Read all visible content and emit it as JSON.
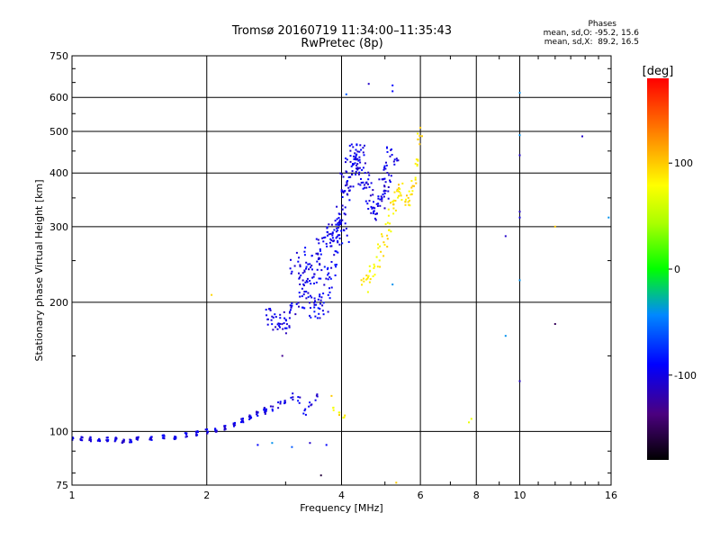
{
  "chart_data": {
    "type": "scatter",
    "title": "Tromsø 20160719 11:34:00–11:35:43",
    "subtitle": "RwPretec (8p)",
    "xlabel": "Frequency [MHz]",
    "ylabel": "Stationary phase Virtual Height [km]",
    "xscale": "log",
    "yscale": "log",
    "xlim": [
      1,
      16
    ],
    "ylim": [
      75,
      750
    ],
    "x_ticks": [
      1,
      2,
      4,
      6,
      8,
      10,
      16
    ],
    "y_ticks": [
      75,
      100,
      200,
      300,
      400,
      500,
      600,
      750
    ],
    "grid": true,
    "legend_title": "Phases",
    "stats_lines": [
      "mean, sd,O: -95.2, 15.6",
      "mean, sd,X:  89.2, 16.5"
    ],
    "colorbar": {
      "label": "[deg]",
      "ticks": [
        -100,
        0,
        100
      ],
      "range": [
        -180,
        180
      ]
    },
    "traces": [
      {
        "x": [
          1.0,
          1.05,
          1.1,
          1.15,
          1.2,
          1.25,
          1.3,
          1.35,
          1.4,
          1.5,
          1.6,
          1.7,
          1.8,
          1.9,
          2.0,
          2.1,
          2.2,
          2.3,
          2.4,
          2.5,
          2.6,
          2.7
        ],
        "y": [
          96,
          96,
          96,
          95,
          96,
          96,
          95,
          95,
          96,
          96,
          97,
          97,
          98,
          99,
          100,
          101,
          102,
          104,
          106,
          108,
          110,
          112
        ],
        "phase": -100,
        "spread": 0.012,
        "n": 8
      },
      {
        "x": [
          2.7,
          2.8,
          2.9,
          3.0,
          3.1,
          3.2,
          3.3,
          3.4,
          3.5
        ],
        "y": [
          112,
          113,
          115,
          117,
          121,
          118,
          111,
          115,
          120
        ],
        "phase": -100,
        "spread": 0.02,
        "n": 4
      },
      {
        "x": [
          2.75,
          2.85,
          2.95,
          3.05,
          3.15,
          3.3,
          3.4,
          3.5,
          3.6,
          3.7,
          3.8,
          3.9,
          4.0,
          4.1,
          4.2,
          4.3,
          4.4
        ],
        "y": [
          185,
          180,
          178,
          182,
          195,
          215,
          235,
          250,
          270,
          280,
          290,
          300,
          320,
          350,
          380,
          420,
          450
        ],
        "phase": -100,
        "spread": 0.05,
        "n": 10
      },
      {
        "x": [
          3.2,
          3.3,
          3.4,
          3.5,
          3.6,
          3.7,
          3.8,
          3.9,
          4.0
        ],
        "y": [
          250,
          230,
          210,
          195,
          200,
          220,
          250,
          280,
          300
        ],
        "phase": -95,
        "spread": 0.08,
        "n": 14
      },
      {
        "x": [
          4.1,
          4.2,
          4.3,
          4.4,
          4.5,
          4.6,
          4.7,
          4.8,
          4.9,
          5.0,
          5.1,
          5.2
        ],
        "y": [
          380,
          420,
          440,
          430,
          380,
          360,
          340,
          330,
          350,
          370,
          400,
          450
        ],
        "phase": -100,
        "spread": 0.06,
        "n": 12
      },
      {
        "x": [
          4.5,
          4.6,
          4.7,
          4.8,
          4.9,
          5.0,
          5.1,
          5.2
        ],
        "y": [
          220,
          225,
          235,
          250,
          265,
          280,
          300,
          330
        ],
        "phase": 85,
        "spread": 0.04,
        "n": 6
      },
      {
        "x": [
          5.2,
          5.3,
          5.4,
          5.5,
          5.6,
          5.7,
          5.8,
          5.9,
          6.0
        ],
        "y": [
          340,
          360,
          370,
          350,
          345,
          360,
          380,
          420,
          480
        ],
        "phase": 90,
        "spread": 0.03,
        "n": 6
      },
      {
        "x": [
          3.85,
          3.95,
          4.05
        ],
        "y": [
          113,
          110,
          108
        ],
        "phase": 85,
        "spread": 0.01,
        "n": 3
      }
    ],
    "sparse_points": [
      {
        "x": 4.1,
        "y": 610,
        "phase": -60
      },
      {
        "x": 4.6,
        "y": 645,
        "phase": -110
      },
      {
        "x": 5.2,
        "y": 640,
        "phase": -90
      },
      {
        "x": 5.2,
        "y": 620,
        "phase": -90
      },
      {
        "x": 5.2,
        "y": 220,
        "phase": -40
      },
      {
        "x": 6.0,
        "y": 510,
        "phase": 100
      },
      {
        "x": 2.05,
        "y": 208,
        "phase": 95
      },
      {
        "x": 2.95,
        "y": 150,
        "phase": -130
      },
      {
        "x": 2.6,
        "y": 93,
        "phase": -90
      },
      {
        "x": 2.8,
        "y": 94,
        "phase": -40
      },
      {
        "x": 3.1,
        "y": 92,
        "phase": -60
      },
      {
        "x": 3.4,
        "y": 94,
        "phase": -110
      },
      {
        "x": 3.7,
        "y": 93,
        "phase": -90
      },
      {
        "x": 3.8,
        "y": 121,
        "phase": 100
      },
      {
        "x": 3.6,
        "y": 79,
        "phase": -160
      },
      {
        "x": 5.3,
        "y": 76,
        "phase": 100
      },
      {
        "x": 7.8,
        "y": 107,
        "phase": 70
      },
      {
        "x": 7.7,
        "y": 105,
        "phase": 70
      },
      {
        "x": 9.3,
        "y": 285,
        "phase": -110
      },
      {
        "x": 9.3,
        "y": 167,
        "phase": -40
      },
      {
        "x": 10.0,
        "y": 615,
        "phase": -40
      },
      {
        "x": 10.0,
        "y": 490,
        "phase": -40
      },
      {
        "x": 10.0,
        "y": 440,
        "phase": -110
      },
      {
        "x": 10.0,
        "y": 325,
        "phase": -110
      },
      {
        "x": 10.0,
        "y": 315,
        "phase": -100
      },
      {
        "x": 10.0,
        "y": 225,
        "phase": -40
      },
      {
        "x": 10.0,
        "y": 131,
        "phase": -110
      },
      {
        "x": 12.0,
        "y": 300,
        "phase": 100
      },
      {
        "x": 12.0,
        "y": 178,
        "phase": -150
      },
      {
        "x": 13.8,
        "y": 487,
        "phase": -110
      },
      {
        "x": 15.8,
        "y": 315,
        "phase": -40
      }
    ]
  }
}
